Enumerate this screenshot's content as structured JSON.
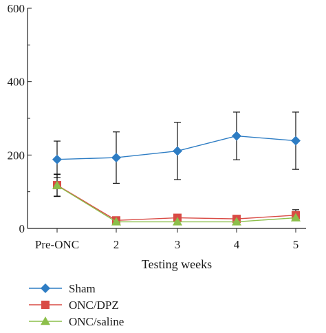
{
  "chart_data": {
    "type": "line",
    "xlabel": "Testing weeks",
    "ylabel": "",
    "categories": [
      "Pre-ONC",
      "2",
      "3",
      "4",
      "5"
    ],
    "ylim": [
      0,
      600
    ],
    "yticks": [
      "0",
      "200",
      "400",
      "600"
    ],
    "grid": false,
    "legend_position": "bottom-left",
    "series": [
      {
        "name": "Sham",
        "color": "#2e7dc4",
        "marker": "diamond",
        "values": [
          188,
          193,
          211,
          252,
          239
        ],
        "error": [
          50,
          70,
          78,
          65,
          78
        ]
      },
      {
        "name": "ONC/DPZ",
        "color": "#d94b45",
        "marker": "square",
        "values": [
          118,
          22,
          29,
          26,
          36
        ],
        "error": [
          30,
          0,
          0,
          0,
          15
        ]
      },
      {
        "name": "ONC/saline",
        "color": "#8cbf4a",
        "marker": "triangle",
        "values": [
          117,
          18,
          18,
          18,
          29
        ],
        "error": [
          30,
          0,
          0,
          0,
          0
        ]
      }
    ]
  }
}
